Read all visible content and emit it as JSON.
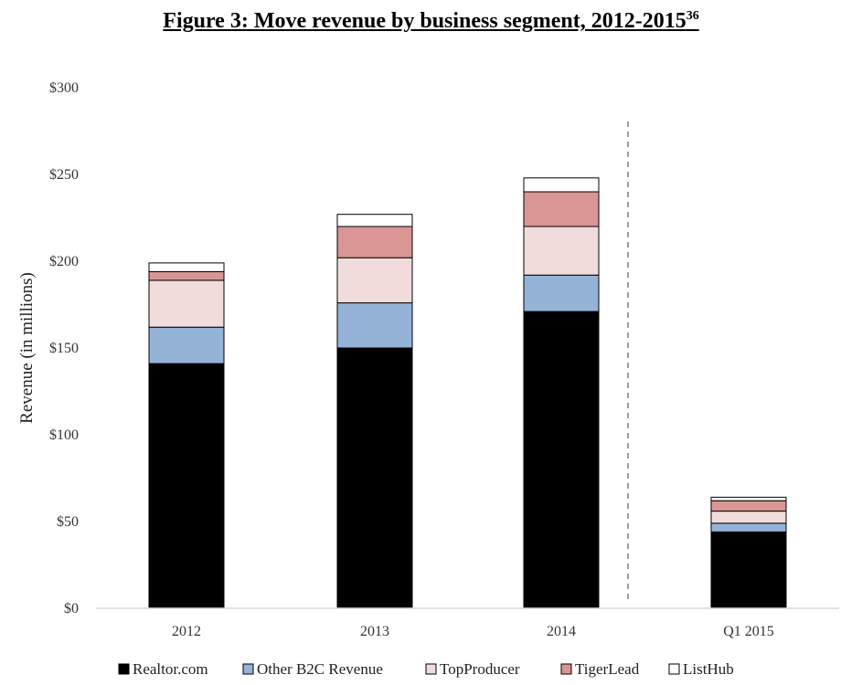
{
  "chart_data": {
    "type": "bar",
    "stacked": true,
    "title": "Figure 3: Move revenue by business segment, 2012-2015",
    "title_footnote": "36",
    "xlabel": "",
    "ylabel": "Revenue (in millions)",
    "ylim": [
      0,
      300
    ],
    "yticks": [
      "$0",
      "$50",
      "$100",
      "$150",
      "$200",
      "$250",
      "$300"
    ],
    "categories": [
      "2012",
      "2013",
      "2014",
      "Q1 2015"
    ],
    "series": [
      {
        "name": "Realtor.com",
        "color": "#000000",
        "values": [
          141,
          150,
          171,
          44
        ]
      },
      {
        "name": "Other B2C Revenue",
        "color": "#95b3d7",
        "values": [
          21,
          26,
          21,
          5
        ]
      },
      {
        "name": "TopProducer",
        "color": "#f2dcdb",
        "values": [
          27,
          26,
          28,
          7
        ]
      },
      {
        "name": "TigerLead",
        "color": "#d99694",
        "values": [
          5,
          18,
          20,
          6
        ]
      },
      {
        "name": "ListHub",
        "color": "#ffffff",
        "values": [
          5,
          7,
          8,
          2
        ]
      }
    ],
    "divider": "dashed line between 2014 and Q1 2015",
    "grid": false,
    "legend_position": "bottom"
  }
}
